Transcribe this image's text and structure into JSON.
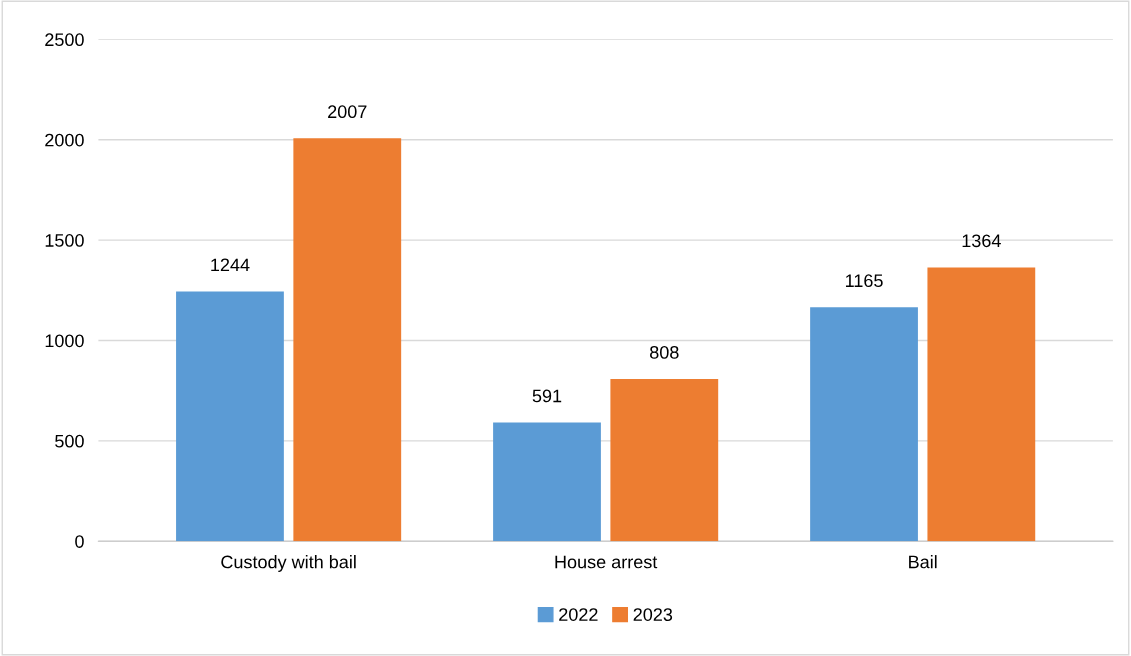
{
  "chart_data": {
    "type": "bar",
    "categories": [
      "Custody with bail",
      "House arrest",
      "Bail"
    ],
    "series": [
      {
        "name": "2022",
        "color": "#5b9bd5",
        "values": [
          1244,
          591,
          1165
        ]
      },
      {
        "name": "2023",
        "color": "#ed7d31",
        "values": [
          2007,
          808,
          1364
        ]
      }
    ],
    "ylim": [
      0,
      2500
    ],
    "yticks": [
      0,
      500,
      1000,
      1500,
      2000,
      2500
    ],
    "grid": "y",
    "legend": "bottom",
    "data_labels": true
  }
}
